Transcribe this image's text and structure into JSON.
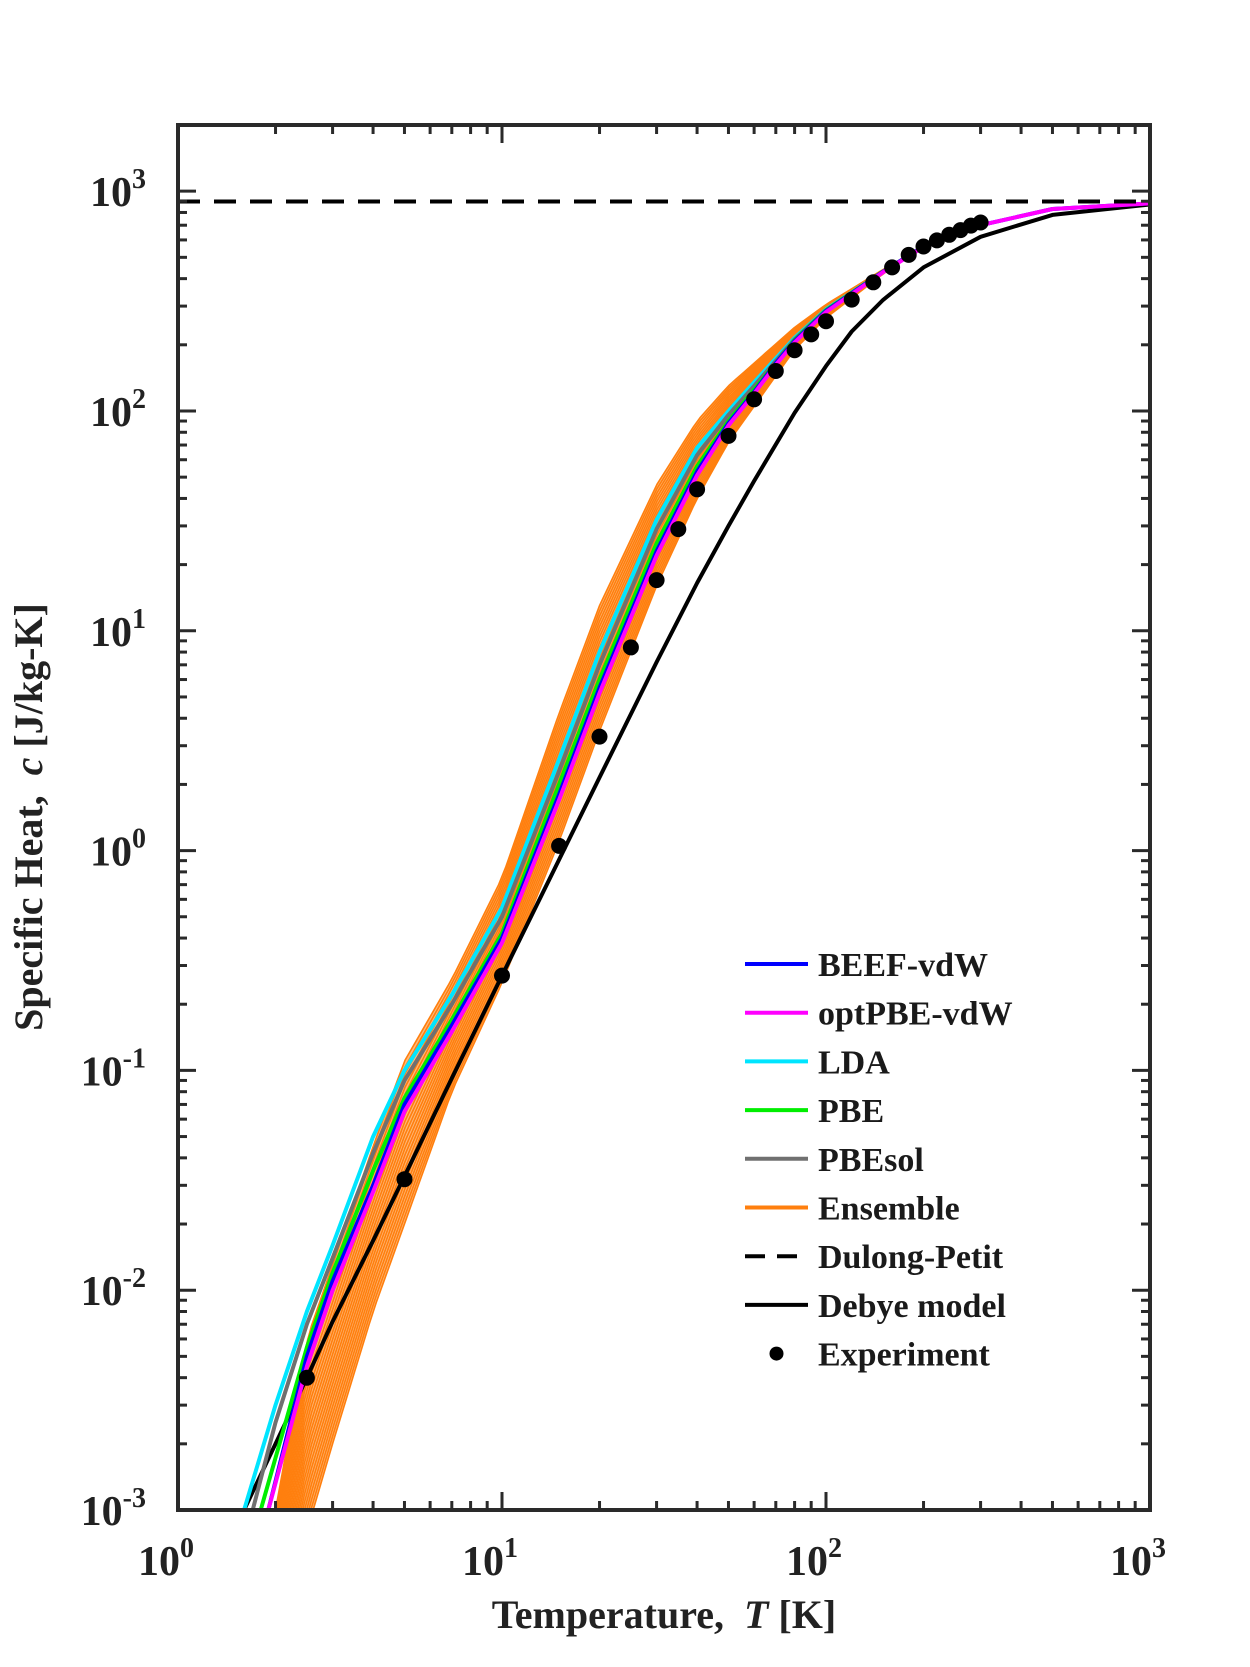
{
  "chart_data": {
    "type": "line",
    "xscale": "log",
    "yscale": "log",
    "xlim": [
      1,
      1000
    ],
    "ylim": [
      0.001,
      2000
    ],
    "xlabel": "Temperature,  T [K]",
    "xlabel_main": "Temperature,",
    "xlabel_var": "T",
    "xlabel_unit": "[K]",
    "ylabel": "Specific Heat,  c [J/kg-K]",
    "ylabel_main": "Specific Heat,",
    "ylabel_var": "c",
    "ylabel_unit": "[J/kg-K]",
    "xticks": [
      {
        "value": 1,
        "base": "10",
        "exp": "0"
      },
      {
        "value": 10,
        "base": "10",
        "exp": "1"
      },
      {
        "value": 100,
        "base": "10",
        "exp": "2"
      },
      {
        "value": 1000,
        "base": "10",
        "exp": "3"
      }
    ],
    "yticks": [
      {
        "value": 0.001,
        "base": "10",
        "exp": "-3"
      },
      {
        "value": 0.01,
        "base": "10",
        "exp": "-2"
      },
      {
        "value": 0.1,
        "base": "10",
        "exp": "-1"
      },
      {
        "value": 1,
        "base": "10",
        "exp": "0"
      },
      {
        "value": 10,
        "base": "10",
        "exp": "1"
      },
      {
        "value": 100,
        "base": "10",
        "exp": "2"
      },
      {
        "value": 1000,
        "base": "10",
        "exp": "3"
      }
    ],
    "legend_position": "lower-right",
    "series": [
      {
        "name": "BEEF-vdW",
        "color": "#0000ff",
        "style": "solid",
        "x": [
          1.9,
          2.5,
          3,
          4,
          5,
          7,
          10,
          15,
          20,
          30,
          40,
          50,
          60,
          70,
          80,
          100,
          150,
          200,
          300,
          500,
          1000
        ],
        "y": [
          0.001,
          0.005,
          0.011,
          0.03,
          0.07,
          0.16,
          0.4,
          1.8,
          5.5,
          23,
          53,
          88,
          122,
          165,
          208,
          285,
          430,
          560,
          700,
          830,
          880
        ]
      },
      {
        "name": "optPBE-vdW",
        "color": "#ff00ff",
        "style": "solid",
        "x": [
          1.9,
          2.5,
          3,
          4,
          5,
          7,
          10,
          15,
          20,
          30,
          40,
          50,
          60,
          70,
          80,
          100,
          150,
          200,
          300,
          500,
          1000
        ],
        "y": [
          0.001,
          0.0045,
          0.01,
          0.028,
          0.065,
          0.15,
          0.38,
          1.7,
          5.2,
          22,
          51,
          86,
          120,
          162,
          205,
          282,
          428,
          558,
          700,
          830,
          880
        ]
      },
      {
        "name": "LDA",
        "color": "#00e5ff",
        "style": "solid",
        "x": [
          1.6,
          2,
          2.5,
          3,
          4,
          5,
          7,
          10,
          15,
          20,
          30,
          40,
          50,
          60,
          80,
          100,
          150,
          200
        ],
        "y": [
          0.001,
          0.003,
          0.008,
          0.016,
          0.05,
          0.1,
          0.22,
          0.55,
          2.6,
          8,
          32,
          68,
          100,
          135,
          215,
          290,
          430,
          560
        ]
      },
      {
        "name": "PBE",
        "color": "#00ee00",
        "style": "solid",
        "x": [
          1.8,
          2.5,
          3,
          4,
          5,
          7,
          10,
          15,
          20,
          30,
          40,
          50,
          60,
          80,
          100,
          150,
          200
        ],
        "y": [
          0.001,
          0.0055,
          0.012,
          0.035,
          0.075,
          0.17,
          0.42,
          2,
          6,
          25,
          56,
          90,
          125,
          210,
          287,
          430,
          560
        ]
      },
      {
        "name": "PBEsol",
        "color": "#707070",
        "style": "solid",
        "x": [
          1.7,
          2,
          2.5,
          3,
          4,
          5,
          7,
          10,
          15,
          20,
          30,
          40,
          50,
          60,
          80,
          100,
          150,
          200
        ],
        "y": [
          0.001,
          0.0025,
          0.007,
          0.014,
          0.042,
          0.09,
          0.2,
          0.5,
          2.3,
          7,
          29,
          63,
          96,
          130,
          212,
          288,
          430,
          560
        ]
      },
      {
        "name": "Ensemble",
        "color": "#ff7f0e",
        "style": "band",
        "x": [
          2,
          2.5,
          3,
          4,
          5,
          7,
          10,
          15,
          20,
          30,
          40,
          50,
          60,
          80,
          100,
          150,
          200
        ],
        "y_low": [
          0.0002,
          0.0008,
          0.002,
          0.008,
          0.02,
          0.08,
          0.25,
          1.1,
          3.5,
          16,
          40,
          72,
          105,
          190,
          265,
          420,
          560
        ],
        "y_high": [
          0.001,
          0.006,
          0.013,
          0.045,
          0.11,
          0.26,
          0.75,
          4.2,
          13,
          46,
          90,
          130,
          165,
          240,
          305,
          440,
          560
        ]
      },
      {
        "name": "Dulong-Petit",
        "color": "#000000",
        "style": "dashed",
        "x": [
          1,
          1000
        ],
        "y": [
          897,
          897
        ]
      },
      {
        "name": "Debye model",
        "color": "#000000",
        "style": "solid",
        "x": [
          1.6,
          2,
          2.5,
          3,
          4,
          5,
          7,
          10,
          15,
          20,
          30,
          40,
          50,
          60,
          80,
          100,
          120,
          150,
          200,
          300,
          500,
          1000
        ],
        "y": [
          0.001,
          0.002,
          0.004,
          0.0072,
          0.0168,
          0.033,
          0.092,
          0.27,
          0.91,
          2.15,
          7.2,
          16.5,
          30,
          48,
          98,
          160,
          230,
          320,
          450,
          620,
          780,
          870
        ]
      },
      {
        "name": "Experiment",
        "color": "#000000",
        "style": "markers",
        "x": [
          2.5,
          5,
          10,
          15,
          20,
          25,
          30,
          35,
          40,
          50,
          60,
          70,
          80,
          90,
          100,
          120,
          140,
          160,
          180,
          200,
          220,
          240,
          260,
          280,
          300
        ],
        "y": [
          0.004,
          0.032,
          0.27,
          1.05,
          3.3,
          8.4,
          17,
          29,
          44,
          77,
          113,
          152,
          189,
          223,
          256,
          321,
          385,
          450,
          513,
          560,
          597,
          633,
          665,
          697,
          720
        ]
      }
    ]
  }
}
